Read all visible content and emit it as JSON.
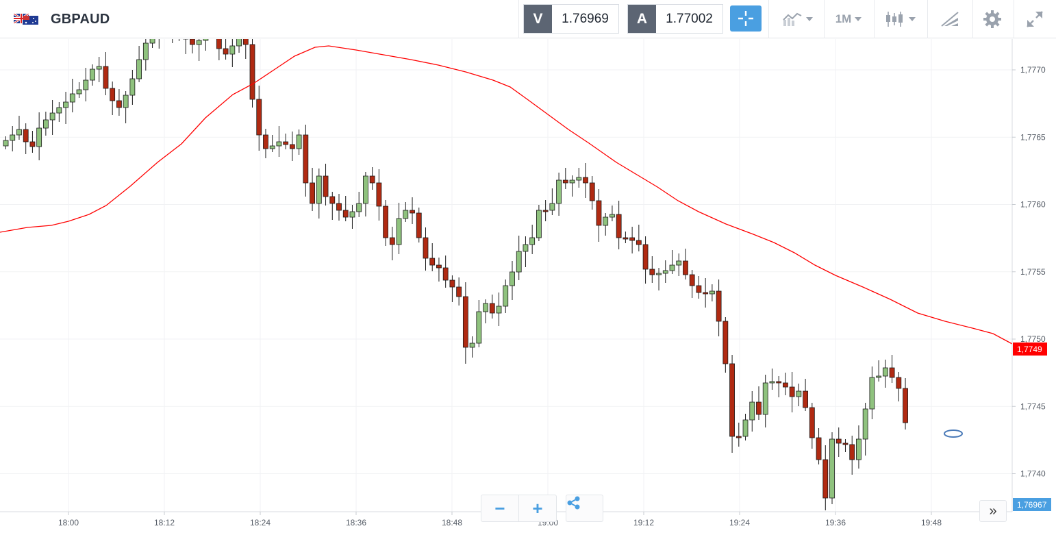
{
  "toolbar": {
    "symbol": "GBPAUD",
    "bid_tag": "V",
    "bid_value": "1.76969",
    "ask_tag": "A",
    "ask_value": "1.77002",
    "timeframe": "1M",
    "icons": [
      "crosshair-icon",
      "chart-type-icon",
      "candles-icon",
      "drawing-tools-icon",
      "gear-icon",
      "fullscreen-icon"
    ]
  },
  "chart": {
    "price_axis": [
      "1,7770",
      "1,7765",
      "1,7760",
      "1,7755",
      "1,7750",
      "1,7745",
      "1,7740"
    ],
    "time_axis": [
      "18:00",
      "18:12",
      "18:24",
      "18:36",
      "18:48",
      "19:00",
      "19:12",
      "19:24",
      "19:36",
      "19:48"
    ],
    "ma_label": "1,7749",
    "current_label": "1,76967",
    "ma_color": "#ff0000",
    "current_color": "#4a9fe1",
    "up_color": "#8fc27e",
    "down_color": "#b02a12"
  },
  "controls": {
    "zoom_out": "−",
    "zoom_in": "+",
    "scroll": "»"
  }
}
